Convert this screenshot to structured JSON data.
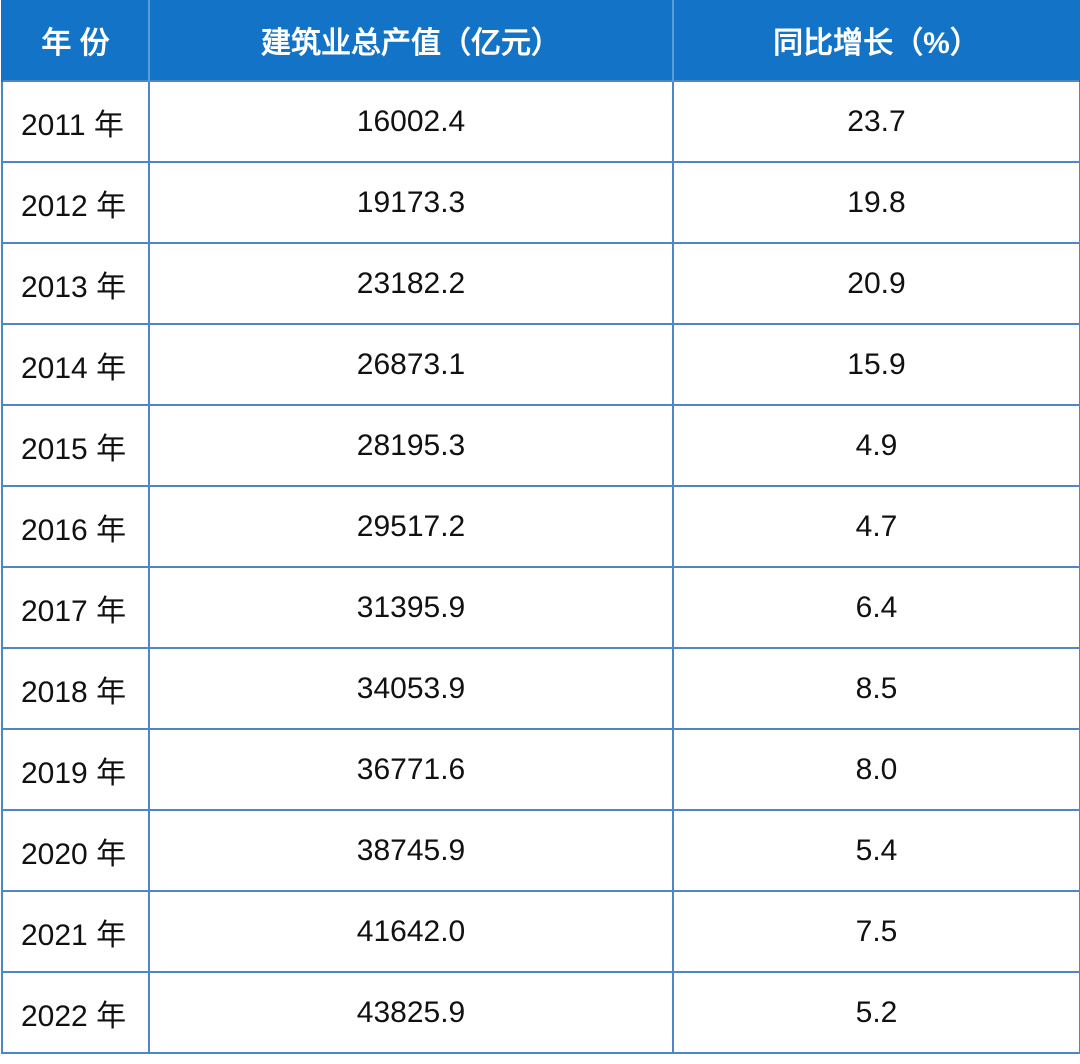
{
  "chart_data": {
    "type": "table",
    "columns": [
      "年 份",
      "建筑业总产值（亿元）",
      "同比增长（%）"
    ],
    "rows": [
      {
        "year": "2011 年",
        "value": "16002.4",
        "growth": "23.7"
      },
      {
        "year": "2012 年",
        "value": "19173.3",
        "growth": "19.8"
      },
      {
        "year": "2013 年",
        "value": "23182.2",
        "growth": "20.9"
      },
      {
        "year": "2014 年",
        "value": "26873.1",
        "growth": "15.9"
      },
      {
        "year": "2015 年",
        "value": "28195.3",
        "growth": "4.9"
      },
      {
        "year": "2016 年",
        "value": "29517.2",
        "growth": "4.7"
      },
      {
        "year": "2017 年",
        "value": "31395.9",
        "growth": "6.4"
      },
      {
        "year": "2018 年",
        "value": "34053.9",
        "growth": "8.5"
      },
      {
        "year": "2019 年",
        "value": "36771.6",
        "growth": "8.0"
      },
      {
        "year": "2020 年",
        "value": "38745.9",
        "growth": "5.4"
      },
      {
        "year": "2021 年",
        "value": "41642.0",
        "growth": "7.5"
      },
      {
        "year": "2022 年",
        "value": "43825.9",
        "growth": "5.2"
      }
    ]
  },
  "colors": {
    "header_bg": "#1373c7",
    "header_text": "#ffffff",
    "grid_line": "#4f86c6"
  }
}
